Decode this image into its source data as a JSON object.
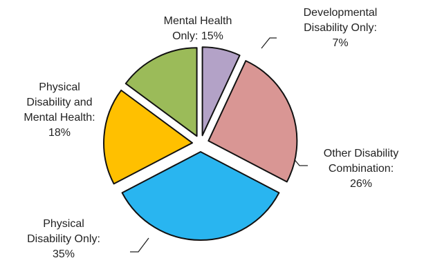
{
  "chart_data": {
    "type": "pie",
    "categories": [
      "Developmental Disability Only:",
      "Other Disability Combination:",
      "Physical Disability Only:",
      "Physical Disability and Mental Health:",
      "Mental Health Only:"
    ],
    "values": [
      7,
      26,
      35,
      18,
      15
    ],
    "value_labels": [
      "7%",
      "26%",
      "35%",
      "18%",
      "15%"
    ],
    "colors": [
      "#b3a2c7",
      "#d99694",
      "#29b5f0",
      "#ffc000",
      "#9bbb59"
    ]
  }
}
